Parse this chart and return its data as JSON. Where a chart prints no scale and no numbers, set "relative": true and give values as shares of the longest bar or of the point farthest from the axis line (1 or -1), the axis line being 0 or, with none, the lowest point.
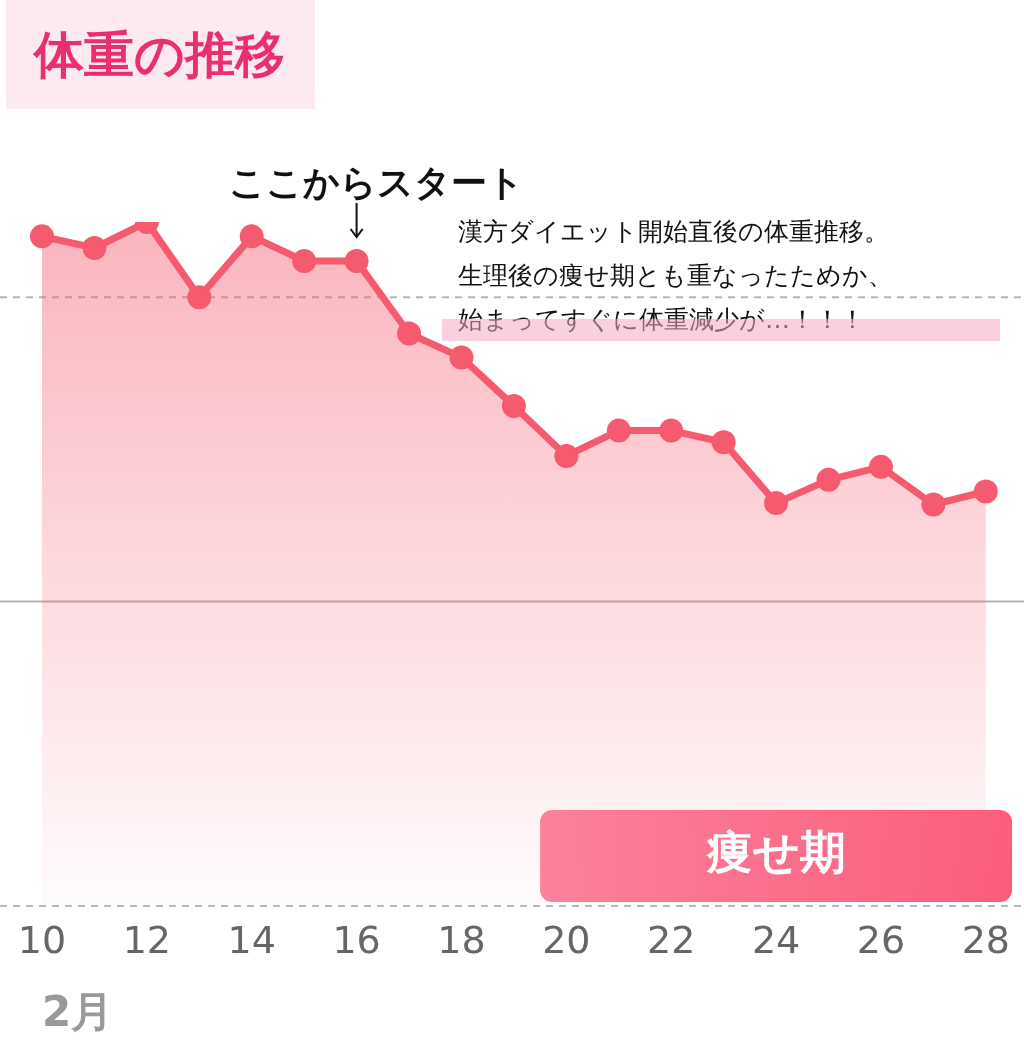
{
  "chart_data": {
    "type": "area",
    "title": "体重の推移",
    "xlabel": "2月",
    "relative": true,
    "tick_labels": "x",
    "grid": false,
    "legend": false,
    "marker": "circle",
    "line_style": "solid",
    "categories": [
      "10",
      null,
      "12",
      null,
      "14",
      null,
      "16",
      null,
      "18",
      null,
      "20",
      null,
      "22",
      null,
      "24",
      null,
      "26",
      null,
      "28"
    ],
    "series": [
      {
        "color": "#f55a6e",
        "values": [
          0.979,
          0.962,
          1,
          0.89,
          0.979,
          0.943,
          0.943,
          0.837,
          0.802,
          0.731,
          0.658,
          0.695,
          0.695,
          0.678,
          0.589,
          0.623,
          0.642,
          0.587,
          0.606
        ]
      }
    ],
    "ref_lines": [
      {
        "axis": "y",
        "value": 0.89,
        "line_style": "dashed",
        "color": "#b5b5b5"
      },
      {
        "axis": "y",
        "value": 0.445,
        "line_style": "solid",
        "color": "#b9aeb0"
      }
    ],
    "bands": [
      {
        "axis": "x",
        "from": "20",
        "to": "28",
        "label": "痩せ期",
        "color": "#fb5c7c"
      }
    ],
    "annotations": [
      {
        "text": "ここからスタート",
        "x": "16",
        "y": 0.943
      },
      "漢方ダイエット開始直後の体重推移。",
      "生理後の痩せ期とも重なったためか、",
      "始まってすぐに体重減少が…！！！"
    ]
  }
}
